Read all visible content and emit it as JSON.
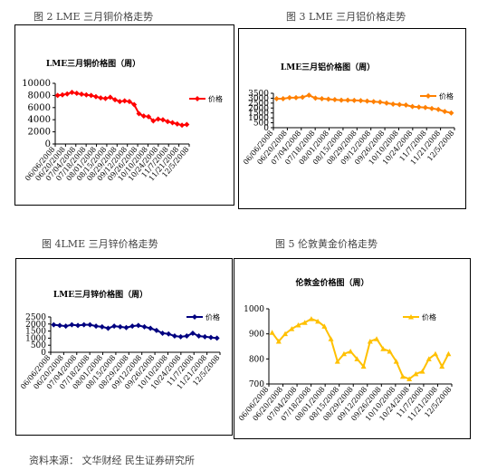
{
  "captions": {
    "fig2": "图 2   LME 三月铜价格走势",
    "fig3": "图 3   LME 三月铝价格走势",
    "fig4": "图 4LME 三月锌价格走势",
    "fig5": "图 5   伦敦黄金价格走势"
  },
  "footer": "资料来源：  文华财经  民生证券研究所",
  "chart_data": [
    {
      "type": "line",
      "title": "LME三月铜价格图（周）",
      "legend": "价格",
      "legend_position": "right",
      "color": "#ff0000",
      "ylim": [
        0,
        10000
      ],
      "yticks": [
        0,
        2000,
        4000,
        6000,
        8000,
        10000
      ],
      "xticks": [
        "06/06/2008",
        "06/20/2008",
        "07/04/2008",
        "07/18/2008",
        "08/01/2008",
        "08/15/2008",
        "08/29/2008",
        "09/12/2008",
        "09/26/2008",
        "10/10/2008",
        "10/24/2008",
        "11/7/2008",
        "11/21/2008",
        "12/5/2008"
      ],
      "values": [
        8000,
        8100,
        8250,
        8500,
        8350,
        8200,
        8100,
        8000,
        7800,
        7600,
        7500,
        7700,
        7300,
        7000,
        7100,
        7000,
        6500,
        5000,
        4600,
        4500,
        3800,
        4100,
        4000,
        3700,
        3500,
        3300,
        3100,
        3200
      ]
    },
    {
      "type": "line",
      "title": "LME三月铝价格图（周）",
      "legend": "价格",
      "legend_position": "right",
      "color": "#ff8000",
      "ylim": [
        0,
        3500
      ],
      "yticks": [
        0,
        500,
        1000,
        1500,
        2000,
        2500,
        3000,
        3500
      ],
      "xticks": [
        "06/06/2008",
        "06/20/2008",
        "07/04/2008",
        "07/18/2008",
        "08/01/2008",
        "08/15/2008",
        "08/29/2008",
        "09/12/2008",
        "09/26/2008",
        "10/10/2008",
        "10/24/2008",
        "11/7/2008",
        "11/21/2008",
        "12/5/2008"
      ],
      "values": [
        2950,
        2950,
        3050,
        3050,
        3100,
        3300,
        3000,
        2950,
        2900,
        2850,
        2800,
        2800,
        2780,
        2750,
        2700,
        2650,
        2600,
        2500,
        2400,
        2350,
        2300,
        2150,
        2100,
        2050,
        1950,
        1850,
        1650,
        1500
      ]
    },
    {
      "type": "line",
      "title": "LME三月锌价格图（周）",
      "legend": "价格",
      "legend_position": "top-right",
      "color": "#000080",
      "ylim": [
        0,
        2500
      ],
      "yticks": [
        0,
        500,
        1000,
        1500,
        2000,
        2500
      ],
      "xticks": [
        "06/06/2008",
        "06/20/2008",
        "07/04/2008",
        "07/18/2008",
        "08/01/2008",
        "08/15/2008",
        "08/29/2008",
        "09/12/2008",
        "09/26/2008",
        "10/10/2008",
        "10/24/2008",
        "11/7/2008",
        "11/21/2008",
        "12/5/2008"
      ],
      "values": [
        1950,
        1900,
        1850,
        1950,
        1900,
        1950,
        1950,
        1850,
        1800,
        1700,
        1850,
        1800,
        1750,
        1850,
        1900,
        1800,
        1700,
        1550,
        1350,
        1300,
        1150,
        1100,
        1150,
        1350,
        1150,
        1100,
        1050,
        1000
      ]
    },
    {
      "type": "line",
      "title": "伦敦金价格图（周）",
      "legend": "价格",
      "legend_position": "top-right",
      "color": "#ffc000",
      "ylim": [
        700,
        1000
      ],
      "yticks": [
        700,
        800,
        900,
        1000
      ],
      "xticks": [
        "06/06/2008",
        "06/20/2008",
        "07/04/2008",
        "07/18/2008",
        "08/01/2008",
        "08/15/2008",
        "08/29/2008",
        "09/12/2008",
        "09/26/2008",
        "10/10/2008",
        "10/24/2008",
        "11/7/2008",
        "11/21/2008",
        "12/5/2008"
      ],
      "values": [
        905,
        870,
        900,
        920,
        935,
        945,
        960,
        950,
        930,
        880,
        790,
        820,
        830,
        800,
        770,
        870,
        880,
        840,
        830,
        790,
        730,
        720,
        740,
        750,
        800,
        820,
        770,
        820
      ]
    }
  ]
}
